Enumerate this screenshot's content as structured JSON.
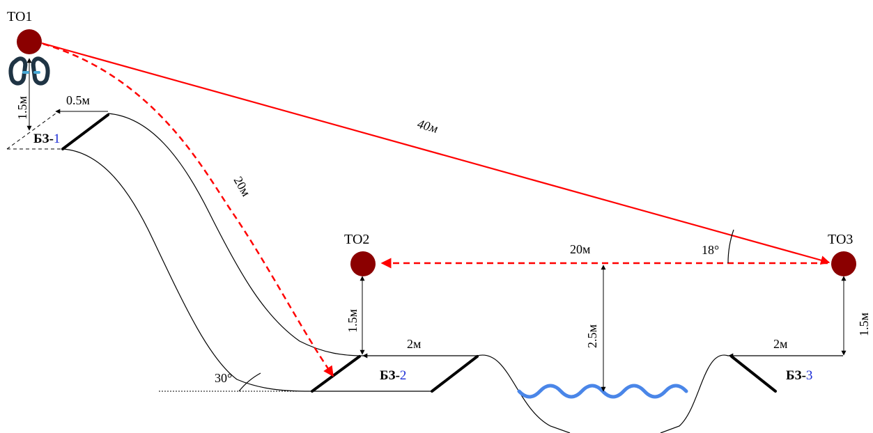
{
  "points": {
    "to1": "ТО1",
    "to2": "ТО2",
    "to3": "ТО3"
  },
  "zones": {
    "bz_prefix": "БЗ-",
    "bz1_num": "1",
    "bz2_num": "2",
    "bz3_num": "3"
  },
  "dimensions": {
    "h_to1": "1.5м",
    "w_bz1": "0.5м",
    "slope_len": "20м",
    "diag_len": "40м",
    "horiz_len": "20м",
    "angle_to3": "18°",
    "angle_slope": "30°",
    "h_to2": "1.5м",
    "w_bz2": "2м",
    "h_water": "2.5м",
    "w_bz3": "2м",
    "h_to3": "1.5м"
  },
  "colors": {
    "point": "#8b0000",
    "rope": "#ff0000",
    "water": "#4a86e8",
    "zone_number": "#1a2bd6",
    "carabiner": "#1f3444"
  },
  "icons": {
    "carabiner": "carabiner-icon"
  }
}
